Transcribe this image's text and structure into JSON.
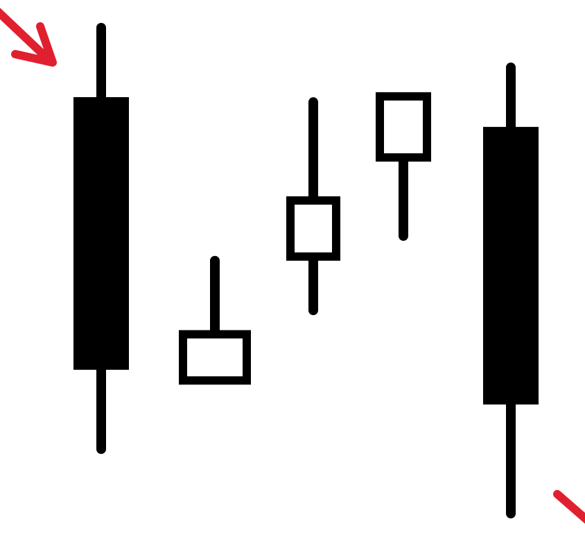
{
  "chart_data": {
    "type": "candlestick",
    "title": "",
    "xlabel": "",
    "ylabel": "",
    "ylim": [
      0,
      100
    ],
    "grid": false,
    "legend": "none",
    "candles": [
      {
        "open": 92,
        "close": 37,
        "high": 106,
        "low": 21,
        "direction": "bearish"
      },
      {
        "open": 34,
        "close": 45,
        "high": 59,
        "low": 34,
        "direction": "bullish"
      },
      {
        "open": 59,
        "close": 72,
        "high": 91,
        "low": 49,
        "direction": "bullish"
      },
      {
        "open": 79,
        "close": 93,
        "high": 93,
        "low": 64,
        "direction": "bullish"
      },
      {
        "open": 86,
        "close": 30,
        "high": 98,
        "low": 8,
        "direction": "bearish"
      }
    ],
    "annotations": [
      {
        "kind": "arrow",
        "color": "#e0202e",
        "points_to": "first-candle-high",
        "from": "top-left"
      },
      {
        "kind": "arrow",
        "color": "#e0202e",
        "points_to": "last-candle-low",
        "from": "bottom-right"
      }
    ]
  },
  "colors": {
    "bearish_fill": "#000000",
    "bullish_fill": "#ffffff",
    "outline": "#000000",
    "annotation": "#e0202e"
  }
}
